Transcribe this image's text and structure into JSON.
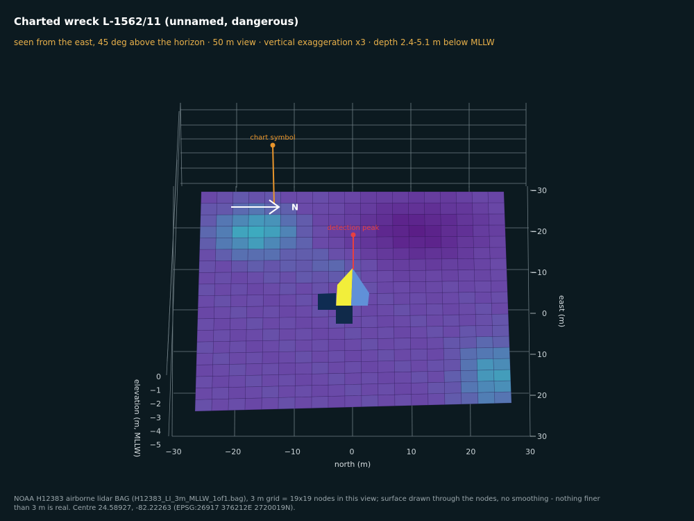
{
  "header": {
    "title": "Charted wreck L-1562/11 (unnamed, dangerous)",
    "subtitle": "seen from the east, 45 deg above the horizon  ·  50 m view  ·  vertical exaggeration x3  ·  depth 2.4-5.1 m below MLLW"
  },
  "footnote": "NOAA H12383 airborne lidar BAG (H12383_LI_3m_MLLW_1of1.bag), 3 m grid = 19x19 nodes in this view; surface drawn through the nodes, no smoothing - nothing finer than 3 m is real.  Centre 24.58927, -82.22263 (EPSG:26917 376212E 2720019N).",
  "chart_data": {
    "type": "surface3d",
    "x": {
      "label": "north (m)",
      "ticks": [
        -30,
        -20,
        -10,
        0,
        10,
        20,
        30
      ],
      "range": [
        -30,
        30
      ]
    },
    "y": {
      "label": "east (m)",
      "ticks": [
        30,
        20,
        10,
        0,
        -10,
        -20,
        -30
      ],
      "range": [
        -30,
        30
      ]
    },
    "z": {
      "label": "elevation (m, MLLW)",
      "ticks": [
        0,
        -1,
        -2,
        -3,
        -4,
        -5
      ],
      "range": [
        -5,
        0
      ]
    },
    "grid_nodes": 19,
    "north_label": "N",
    "annotations": [
      {
        "text": "chart symbol",
        "x": -14,
        "y": -27,
        "color": "#e8952c"
      },
      {
        "text": "detection peak",
        "x": 0,
        "y": -6,
        "color": "#e84040"
      }
    ],
    "surface_colors": {
      "deep": "#5a1c86",
      "mid": "#6a4aa8",
      "shallow": "#3ab0c0",
      "peak": "#f2ee3a"
    }
  }
}
